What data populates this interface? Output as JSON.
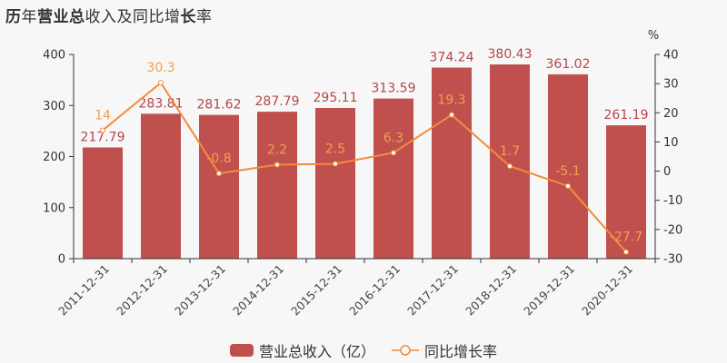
{
  "title": {
    "parts": [
      {
        "text": "历",
        "bold": true
      },
      {
        "text": "年",
        "bold": false
      },
      {
        "text": "营业总",
        "bold": true
      },
      {
        "text": "收入及同比增",
        "bold": false
      },
      {
        "text": "长",
        "bold": true
      },
      {
        "text": "率",
        "bold": false
      }
    ]
  },
  "legend": {
    "bar_label": "营业总收入（亿）",
    "line_label": "同比增长率"
  },
  "right_axis_unit": "%",
  "colors": {
    "bar": "#c0504d",
    "line": "#f28c3a",
    "bar_label": "#b5474a",
    "line_label": "#f0a050",
    "axis": "#333333"
  },
  "chart_data": {
    "type": "bar+line",
    "title": "历年营业总收入及同比增长率",
    "categories": [
      "2011-12-31",
      "2012-12-31",
      "2013-12-31",
      "2014-12-31",
      "2015-12-31",
      "2016-12-31",
      "2017-12-31",
      "2018-12-31",
      "2019-12-31",
      "2020-12-31"
    ],
    "series": [
      {
        "name": "营业总收入（亿）",
        "type": "bar",
        "axis": "left",
        "values": [
          217.79,
          283.81,
          281.62,
          287.79,
          295.11,
          313.59,
          374.24,
          380.43,
          361.02,
          261.19
        ]
      },
      {
        "name": "同比增长率",
        "type": "line",
        "axis": "right",
        "values": [
          14,
          30.3,
          -0.8,
          2.2,
          2.5,
          6.3,
          19.3,
          1.7,
          -5.1,
          -27.7
        ]
      }
    ],
    "ylim_left": [
      0,
      400
    ],
    "yticks_left": [
      0,
      100,
      200,
      300,
      400
    ],
    "ylim_right": [
      -30,
      40
    ],
    "yticks_right": [
      -30,
      -20,
      -10,
      0,
      10,
      20,
      30,
      40
    ],
    "ylabel_right": "%",
    "legend_position": "bottom",
    "grid": false
  }
}
